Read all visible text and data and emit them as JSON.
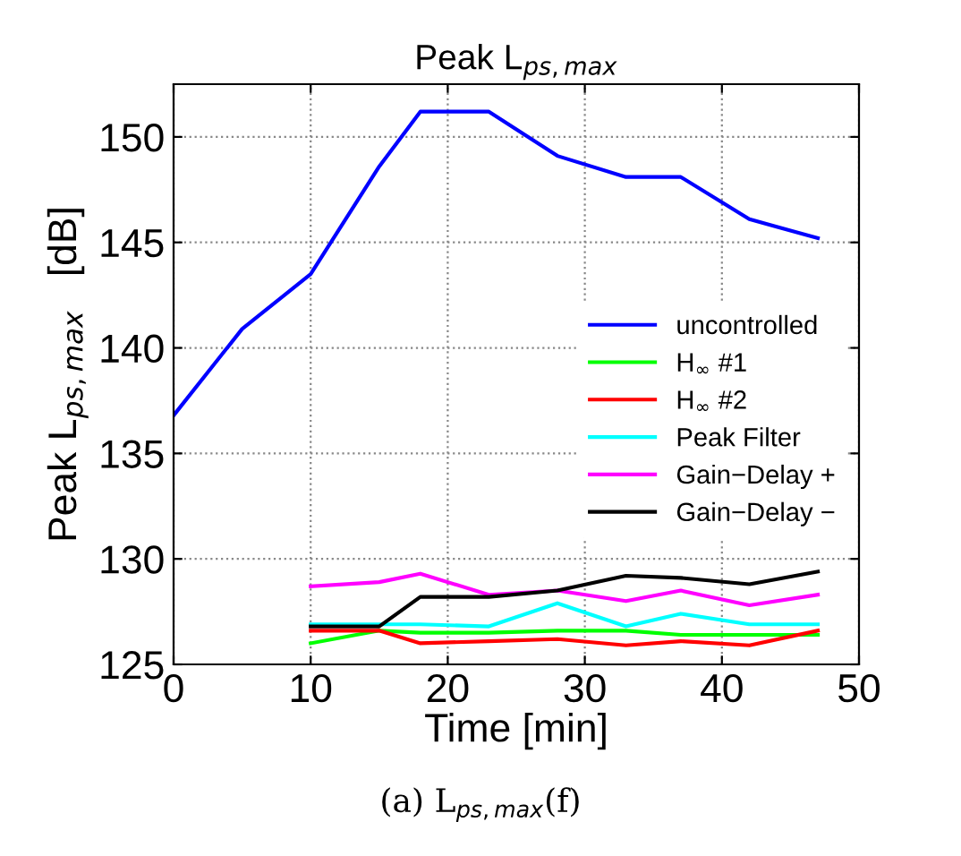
{
  "chart_data": {
    "type": "line",
    "title": "Peak L$_{ps,max}$",
    "xlabel": "Time [min]",
    "ylabel": "Peak L$_{ps,max}$   [dB]",
    "xlim": [
      0,
      50
    ],
    "xticks": [
      0,
      10,
      20,
      30,
      40,
      50
    ],
    "ylim": [
      125,
      152.5
    ],
    "yticks": [
      125,
      130,
      135,
      140,
      145,
      150
    ],
    "grid": true,
    "legend": "right",
    "line_style": "solid",
    "annotations": [
      "(a) L$_{ps,max}$(f)"
    ],
    "series": [
      {
        "name": "uncontrolled",
        "color": "#0000ff",
        "x": [
          0,
          5,
          10,
          15,
          18,
          23,
          28,
          33,
          37,
          42,
          47
        ],
        "values": [
          136.8,
          140.9,
          143.5,
          148.6,
          151.2,
          151.2,
          149.1,
          148.1,
          148.1,
          146.1,
          145.2
        ]
      },
      {
        "name": "H$_{∞}$ #1",
        "color": "#00ff00",
        "x": [
          10,
          15,
          18,
          23,
          28,
          33,
          37,
          42,
          47
        ],
        "values": [
          126.0,
          126.6,
          126.5,
          126.5,
          126.6,
          126.6,
          126.4,
          126.4,
          126.4
        ]
      },
      {
        "name": "H$_{∞}$ #2",
        "color": "#ff0000",
        "x": [
          10,
          15,
          18,
          23,
          28,
          33,
          37,
          42,
          47
        ],
        "values": [
          126.6,
          126.6,
          126.0,
          126.1,
          126.2,
          125.9,
          126.1,
          125.9,
          126.6
        ]
      },
      {
        "name": "Peak Filter",
        "color": "#00ffff",
        "x": [
          10,
          15,
          18,
          23,
          28,
          33,
          37,
          42,
          47
        ],
        "values": [
          126.9,
          126.9,
          126.9,
          126.8,
          127.9,
          126.8,
          127.4,
          126.9,
          126.9
        ]
      },
      {
        "name": "Gain−Delay +",
        "color": "#ff00ff",
        "x": [
          10,
          15,
          18,
          23,
          28,
          33,
          37,
          42,
          47
        ],
        "values": [
          128.7,
          128.9,
          129.3,
          128.3,
          128.5,
          128.0,
          128.5,
          127.8,
          128.3
        ]
      },
      {
        "name": "Gain−Delay −",
        "color": "#000000",
        "x": [
          10,
          15,
          18,
          23,
          28,
          33,
          37,
          42,
          47
        ],
        "values": [
          126.8,
          126.8,
          128.2,
          128.2,
          128.5,
          129.2,
          129.1,
          128.8,
          129.4
        ]
      }
    ]
  }
}
